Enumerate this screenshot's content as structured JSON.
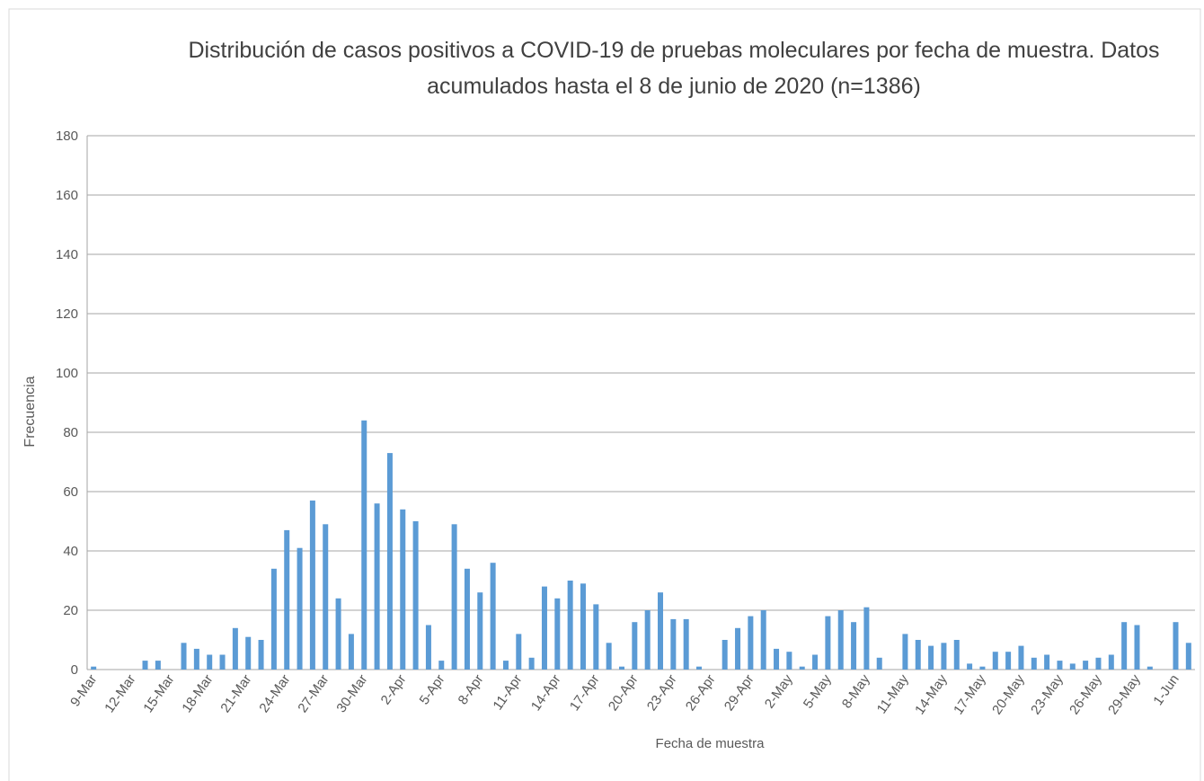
{
  "chart_data": {
    "type": "bar",
    "title": "Distribución de casos positivos a COVID-19 de pruebas moleculares por fecha de muestra. Datos acumulados hasta el 8 de junio de 2020 (n=1386)",
    "x_label": "Fecha de muestra",
    "y_label": "Frecuencia",
    "categories": [
      "9-Mar",
      null,
      null,
      "12-Mar",
      null,
      null,
      "15-Mar",
      null,
      null,
      "18-Mar",
      null,
      null,
      "21-Mar",
      null,
      null,
      "24-Mar",
      null,
      null,
      "27-Mar",
      null,
      null,
      "30-Mar",
      null,
      null,
      "2-Apr",
      null,
      null,
      "5-Apr",
      null,
      null,
      "8-Apr",
      null,
      null,
      "11-Apr",
      null,
      null,
      "14-Apr",
      null,
      null,
      "17-Apr",
      null,
      null,
      "20-Apr",
      null,
      null,
      "23-Apr",
      null,
      null,
      "26-Apr",
      null,
      null,
      "29-Apr",
      null,
      null,
      "2-May",
      null,
      null,
      "5-May",
      null,
      null,
      "8-May",
      null,
      null,
      "11-May",
      null,
      null,
      "14-May",
      null,
      null,
      "17-May",
      null,
      null,
      "20-May",
      null,
      null,
      "23-May",
      null,
      null,
      "26-May",
      null,
      null,
      "29-May",
      null,
      null,
      "1-Jun",
      null
    ],
    "values": [
      1,
      0,
      0,
      0,
      3,
      3,
      0,
      9,
      7,
      5,
      5,
      14,
      11,
      10,
      34,
      47,
      41,
      57,
      49,
      24,
      12,
      84,
      56,
      73,
      54,
      50,
      15,
      3,
      49,
      34,
      26,
      36,
      3,
      12,
      4,
      28,
      24,
      30,
      29,
      22,
      9,
      1,
      16,
      20,
      26,
      17,
      17,
      1,
      0,
      10,
      14,
      18,
      20,
      7,
      6,
      1,
      5,
      18,
      20,
      16,
      21,
      4,
      0,
      12,
      10,
      8,
      9,
      10,
      2,
      1,
      6,
      6,
      8,
      4,
      5,
      3,
      2,
      3,
      4,
      5,
      16,
      15,
      1,
      0,
      16,
      9
    ],
    "color": "#5b9bd5",
    "ylim": [
      0,
      180
    ],
    "yticks": [
      0,
      20,
      40,
      60,
      80,
      100,
      120,
      140,
      160,
      180
    ],
    "grid": true
  }
}
